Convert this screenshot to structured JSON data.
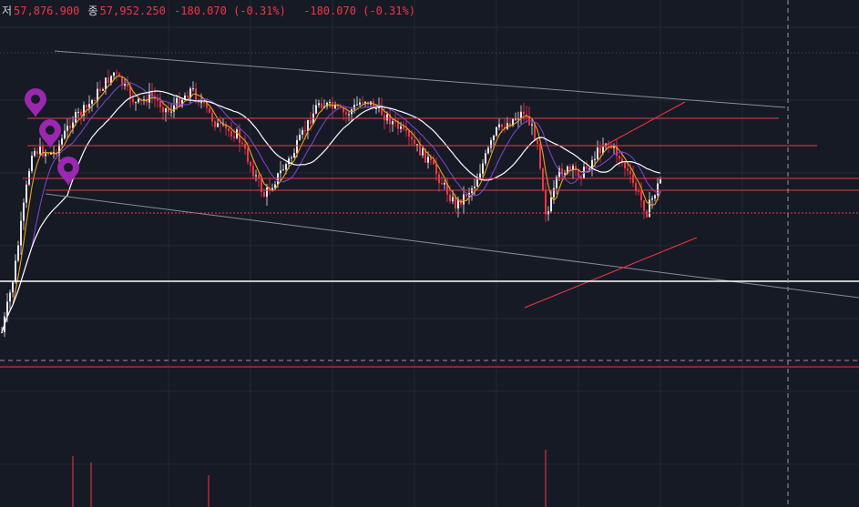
{
  "legend": {
    "low_label": "저",
    "low_value": "57,876.900",
    "close_label": "종",
    "close_value": "57,952.250",
    "change": "-180.070 (-0.31%)",
    "change_repeat": "-180.070 (-0.31%)"
  },
  "colors": {
    "background": "#161a25",
    "grid": "#232834",
    "candle_up": "#e8e8ee",
    "candle_down": "#f23645",
    "ma_fast": "#f0a020",
    "ma_mid": "#7a43c6",
    "ma_slow": "#ffffff",
    "hline": "#f23645",
    "support_line": "#ffffff",
    "trendline": "#8a8d96",
    "marker": "#9c27b0",
    "volume": "#f23645"
  },
  "chart_data": {
    "type": "candlestick",
    "title": "",
    "price_path": [
      [
        0,
        0.9
      ],
      [
        15,
        0.7
      ],
      [
        35,
        0.31
      ],
      [
        60,
        0.32
      ],
      [
        78,
        0.22
      ],
      [
        95,
        0.18
      ],
      [
        110,
        0.12
      ],
      [
        125,
        0.07
      ],
      [
        150,
        0.17
      ],
      [
        165,
        0.14
      ],
      [
        185,
        0.19
      ],
      [
        210,
        0.12
      ],
      [
        240,
        0.24
      ],
      [
        260,
        0.26
      ],
      [
        290,
        0.45
      ],
      [
        320,
        0.33
      ],
      [
        350,
        0.16
      ],
      [
        380,
        0.2
      ],
      [
        400,
        0.15
      ],
      [
        430,
        0.22
      ],
      [
        470,
        0.34
      ],
      [
        500,
        0.48
      ],
      [
        520,
        0.42
      ],
      [
        545,
        0.25
      ],
      [
        575,
        0.19
      ],
      [
        590,
        0.28
      ],
      [
        600,
        0.52
      ],
      [
        615,
        0.37
      ],
      [
        640,
        0.38
      ],
      [
        665,
        0.28
      ],
      [
        680,
        0.33
      ],
      [
        710,
        0.5
      ],
      [
        725,
        0.4
      ]
    ],
    "volume_spikes": [
      {
        "x": 80,
        "v": 0.8
      },
      {
        "x": 100,
        "v": 0.7
      },
      {
        "x": 229,
        "v": 0.5
      },
      {
        "x": 599,
        "v": 0.9
      }
    ],
    "horizontal_levels": [
      {
        "value": "resistance-1",
        "from": 30,
        "to": 855
      },
      {
        "value": "resistance-2",
        "from": 30,
        "to": 897
      },
      {
        "value": "resistance-3",
        "from": 25,
        "to": 943
      },
      {
        "value": "resistance-4",
        "from": 50,
        "to": 943
      },
      {
        "value": "current-price",
        "from": 60,
        "to": 943,
        "dotted": true
      },
      {
        "value": "support",
        "from": 0,
        "to": 943,
        "white": true
      },
      {
        "value": "lower-bound",
        "from": 0,
        "to": 943
      }
    ],
    "markers": [
      "pin-1",
      "pin-2",
      "pin-3"
    ]
  }
}
